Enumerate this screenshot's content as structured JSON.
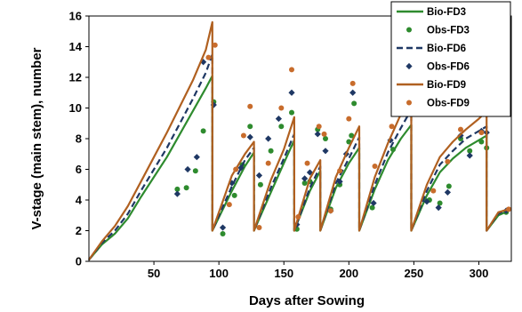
{
  "chart_data": {
    "type": "line",
    "xlabel": "Days after Sowing",
    "ylabel": "V-stage (main stem), number",
    "xlim": [
      0,
      325
    ],
    "ylim": [
      0,
      16
    ],
    "xticks": [
      50,
      100,
      150,
      200,
      250,
      300
    ],
    "yticks": [
      0,
      2,
      4,
      6,
      8,
      10,
      12,
      14,
      16
    ],
    "grid": false,
    "legend_position": "top-right",
    "series": [
      {
        "name": "Bio-FD3",
        "kind": "line",
        "color": "#2e8b2e",
        "dash": "solid",
        "points": [
          [
            0,
            0.1
          ],
          [
            10,
            1.1
          ],
          [
            20,
            1.8
          ],
          [
            30,
            2.8
          ],
          [
            40,
            4.2
          ],
          [
            50,
            5.5
          ],
          [
            60,
            6.8
          ],
          [
            70,
            8.3
          ],
          [
            80,
            9.8
          ],
          [
            90,
            11.3
          ],
          [
            95,
            12.1
          ],
          [
            95,
            2.0
          ],
          [
            110,
            4.6
          ],
          [
            120,
            6.2
          ],
          [
            127,
            7.1
          ],
          [
            127,
            2.0
          ],
          [
            140,
            4.5
          ],
          [
            150,
            6.4
          ],
          [
            158,
            7.9
          ],
          [
            158,
            2.0
          ],
          [
            170,
            4.6
          ],
          [
            178,
            5.9
          ],
          [
            178,
            2.0
          ],
          [
            190,
            4.8
          ],
          [
            200,
            6.4
          ],
          [
            208,
            7.4
          ],
          [
            208,
            2.0
          ],
          [
            220,
            4.7
          ],
          [
            230,
            6.6
          ],
          [
            240,
            8.0
          ],
          [
            248,
            8.9
          ],
          [
            248,
            2.0
          ],
          [
            260,
            4.3
          ],
          [
            270,
            5.8
          ],
          [
            280,
            6.7
          ],
          [
            290,
            7.4
          ],
          [
            300,
            7.9
          ],
          [
            306,
            8.2
          ],
          [
            306,
            2.0
          ],
          [
            315,
            3.0
          ],
          [
            323,
            3.3
          ]
        ]
      },
      {
        "name": "Obs-FD3",
        "kind": "marker",
        "marker": "circle",
        "color": "#2e8b2e",
        "points": [
          [
            68,
            4.7
          ],
          [
            75,
            4.8
          ],
          [
            82,
            5.9
          ],
          [
            88,
            8.5
          ],
          [
            96,
            10.4
          ],
          [
            103,
            1.8
          ],
          [
            112,
            4.3
          ],
          [
            118,
            6.3
          ],
          [
            124,
            8.8
          ],
          [
            132,
            5.0
          ],
          [
            140,
            7.2
          ],
          [
            148,
            8.8
          ],
          [
            156,
            9.7
          ],
          [
            160,
            2.1
          ],
          [
            166,
            5.1
          ],
          [
            170,
            5.2
          ],
          [
            176,
            8.6
          ],
          [
            182,
            8.0
          ],
          [
            186,
            3.4
          ],
          [
            193,
            5.0
          ],
          [
            200,
            7.8
          ],
          [
            202,
            8.2
          ],
          [
            204,
            10.3
          ],
          [
            218,
            3.5
          ],
          [
            234,
            7.3
          ],
          [
            246,
            10.8
          ],
          [
            262,
            4.0
          ],
          [
            270,
            3.8
          ],
          [
            277,
            4.9
          ],
          [
            286,
            8.0
          ],
          [
            293,
            7.2
          ],
          [
            302,
            7.8
          ],
          [
            306,
            7.4
          ],
          [
            321,
            3.2
          ]
        ]
      },
      {
        "name": "Bio-FD6",
        "kind": "line",
        "color": "#1f3864",
        "dash": "dashed",
        "points": [
          [
            0,
            0.1
          ],
          [
            10,
            1.2
          ],
          [
            20,
            2.0
          ],
          [
            30,
            3.1
          ],
          [
            40,
            4.6
          ],
          [
            50,
            6.0
          ],
          [
            60,
            7.4
          ],
          [
            70,
            9.0
          ],
          [
            80,
            10.6
          ],
          [
            90,
            12.3
          ],
          [
            95,
            13.5
          ],
          [
            95,
            2.0
          ],
          [
            110,
            4.9
          ],
          [
            120,
            6.6
          ],
          [
            127,
            7.4
          ],
          [
            127,
            2.0
          ],
          [
            140,
            4.8
          ],
          [
            150,
            6.7
          ],
          [
            158,
            8.3
          ],
          [
            158,
            2.0
          ],
          [
            170,
            4.8
          ],
          [
            178,
            6.2
          ],
          [
            178,
            2.0
          ],
          [
            190,
            5.1
          ],
          [
            200,
            6.7
          ],
          [
            208,
            8.1
          ],
          [
            208,
            2.0
          ],
          [
            220,
            5.0
          ],
          [
            230,
            7.1
          ],
          [
            240,
            8.7
          ],
          [
            248,
            9.9
          ],
          [
            248,
            2.0
          ],
          [
            260,
            4.6
          ],
          [
            270,
            6.3
          ],
          [
            280,
            7.2
          ],
          [
            290,
            8.0
          ],
          [
            300,
            8.5
          ],
          [
            306,
            8.8
          ],
          [
            306,
            2.0
          ],
          [
            315,
            3.1
          ],
          [
            323,
            3.4
          ]
        ]
      },
      {
        "name": "Obs-FD6",
        "kind": "marker",
        "marker": "diamond",
        "color": "#1f3864",
        "points": [
          [
            68,
            4.4
          ],
          [
            76,
            6.0
          ],
          [
            83,
            6.8
          ],
          [
            88,
            13.0
          ],
          [
            96,
            10.2
          ],
          [
            103,
            2.2
          ],
          [
            110,
            5.1
          ],
          [
            117,
            6.1
          ],
          [
            124,
            8.1
          ],
          [
            131,
            5.6
          ],
          [
            138,
            8.0
          ],
          [
            146,
            9.3
          ],
          [
            156,
            11.0
          ],
          [
            160,
            2.4
          ],
          [
            166,
            5.4
          ],
          [
            170,
            5.8
          ],
          [
            176,
            8.3
          ],
          [
            182,
            7.2
          ],
          [
            186,
            3.3
          ],
          [
            193,
            5.2
          ],
          [
            198,
            7.0
          ],
          [
            203,
            11.0
          ],
          [
            219,
            3.8
          ],
          [
            232,
            7.9
          ],
          [
            245,
            12.9
          ],
          [
            260,
            3.9
          ],
          [
            269,
            3.5
          ],
          [
            276,
            4.5
          ],
          [
            286,
            8.2
          ],
          [
            293,
            6.9
          ],
          [
            302,
            8.5
          ],
          [
            306,
            8.4
          ],
          [
            321,
            3.3
          ]
        ]
      },
      {
        "name": "Bio-FD9",
        "kind": "line",
        "color": "#b06020",
        "dash": "solid",
        "points": [
          [
            0,
            0.1
          ],
          [
            10,
            1.3
          ],
          [
            20,
            2.3
          ],
          [
            30,
            3.6
          ],
          [
            40,
            5.2
          ],
          [
            50,
            6.8
          ],
          [
            60,
            8.4
          ],
          [
            70,
            10.1
          ],
          [
            80,
            11.8
          ],
          [
            90,
            13.8
          ],
          [
            95,
            15.6
          ],
          [
            95,
            2.0
          ],
          [
            110,
            5.6
          ],
          [
            120,
            7.0
          ],
          [
            127,
            7.8
          ],
          [
            127,
            2.0
          ],
          [
            140,
            5.3
          ],
          [
            150,
            7.3
          ],
          [
            158,
            9.4
          ],
          [
            158,
            2.0
          ],
          [
            170,
            5.4
          ],
          [
            178,
            6.6
          ],
          [
            178,
            2.0
          ],
          [
            190,
            5.5
          ],
          [
            200,
            7.4
          ],
          [
            208,
            8.8
          ],
          [
            208,
            2.0
          ],
          [
            220,
            5.5
          ],
          [
            230,
            7.7
          ],
          [
            240,
            9.6
          ],
          [
            248,
            11.0
          ],
          [
            248,
            2.0
          ],
          [
            260,
            5.0
          ],
          [
            270,
            6.8
          ],
          [
            280,
            7.8
          ],
          [
            290,
            8.6
          ],
          [
            300,
            9.3
          ],
          [
            306,
            9.8
          ],
          [
            306,
            2.0
          ],
          [
            315,
            3.2
          ],
          [
            323,
            3.4
          ]
        ]
      },
      {
        "name": "Obs-FD9",
        "kind": "marker",
        "marker": "circle",
        "color": "#c86c2c",
        "points": [
          [
            92,
            13.3
          ],
          [
            97,
            14.1
          ],
          [
            108,
            3.7
          ],
          [
            113,
            6.0
          ],
          [
            119,
            8.2
          ],
          [
            124,
            10.1
          ],
          [
            131,
            2.2
          ],
          [
            138,
            6.4
          ],
          [
            148,
            10.0
          ],
          [
            156,
            12.5
          ],
          [
            161,
            2.9
          ],
          [
            168,
            6.4
          ],
          [
            177,
            8.8
          ],
          [
            181,
            8.3
          ],
          [
            186,
            3.3
          ],
          [
            193,
            5.9
          ],
          [
            200,
            9.3
          ],
          [
            203,
            11.6
          ],
          [
            220,
            6.2
          ],
          [
            233,
            8.8
          ],
          [
            245,
            13.5
          ],
          [
            265,
            4.6
          ],
          [
            276,
            6.5
          ],
          [
            286,
            8.6
          ],
          [
            302,
            8.4
          ],
          [
            305,
            9.6
          ],
          [
            323,
            3.4
          ]
        ]
      }
    ]
  }
}
